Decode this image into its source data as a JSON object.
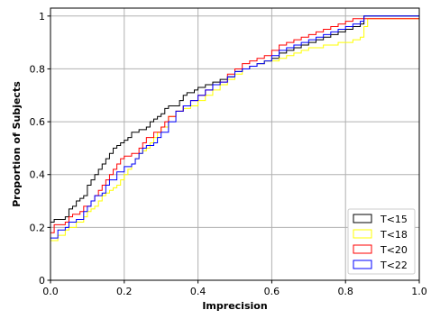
{
  "chart_data": {
    "type": "line",
    "title": "",
    "xlabel": "Imprecision",
    "ylabel": "Proportion of Subjects",
    "xlim": [
      0,
      1
    ],
    "ylim": [
      0,
      1.03
    ],
    "x_ticks": [
      "0.0",
      "0.2",
      "0.4",
      "0.6",
      "0.8",
      "1.0"
    ],
    "y_ticks": [
      "0",
      "0.2",
      "0.4",
      "0.6",
      "0.8",
      "1"
    ],
    "grid": true,
    "legend_position": "bottom-right",
    "series": [
      {
        "name": "T<15",
        "color": "#000000",
        "x": [
          0,
          0,
          0.01,
          0.04,
          0.05,
          0.06,
          0.07,
          0.08,
          0.09,
          0.1,
          0.11,
          0.12,
          0.13,
          0.14,
          0.15,
          0.16,
          0.17,
          0.18,
          0.19,
          0.2,
          0.21,
          0.22,
          0.24,
          0.26,
          0.27,
          0.28,
          0.29,
          0.3,
          0.31,
          0.32,
          0.35,
          0.36,
          0.37,
          0.39,
          0.4,
          0.42,
          0.44,
          0.46,
          0.48,
          0.5,
          0.52,
          0.54,
          0.56,
          0.58,
          0.6,
          0.62,
          0.64,
          0.66,
          0.68,
          0.7,
          0.72,
          0.74,
          0.76,
          0.78,
          0.8,
          0.82,
          0.84,
          0.85,
          0.87,
          1.0
        ],
        "y": [
          0,
          0.22,
          0.23,
          0.24,
          0.27,
          0.28,
          0.3,
          0.31,
          0.32,
          0.36,
          0.38,
          0.4,
          0.42,
          0.44,
          0.46,
          0.48,
          0.5,
          0.51,
          0.52,
          0.53,
          0.54,
          0.56,
          0.57,
          0.58,
          0.6,
          0.61,
          0.62,
          0.63,
          0.65,
          0.66,
          0.68,
          0.7,
          0.71,
          0.72,
          0.73,
          0.74,
          0.75,
          0.76,
          0.77,
          0.79,
          0.8,
          0.81,
          0.82,
          0.83,
          0.84,
          0.86,
          0.87,
          0.88,
          0.89,
          0.9,
          0.91,
          0.92,
          0.93,
          0.94,
          0.95,
          0.96,
          0.97,
          1.0,
          1.0,
          1.0
        ]
      },
      {
        "name": "T<18",
        "color": "#ffff00",
        "x": [
          0,
          0,
          0.02,
          0.04,
          0.05,
          0.07,
          0.09,
          0.1,
          0.11,
          0.12,
          0.13,
          0.14,
          0.15,
          0.16,
          0.17,
          0.18,
          0.19,
          0.2,
          0.21,
          0.22,
          0.23,
          0.24,
          0.25,
          0.26,
          0.27,
          0.28,
          0.29,
          0.3,
          0.32,
          0.34,
          0.36,
          0.38,
          0.4,
          0.42,
          0.44,
          0.46,
          0.48,
          0.5,
          0.52,
          0.54,
          0.56,
          0.58,
          0.6,
          0.62,
          0.64,
          0.66,
          0.68,
          0.7,
          0.74,
          0.78,
          0.82,
          0.84,
          0.85,
          0.86,
          1.0
        ],
        "y": [
          0,
          0.15,
          0.17,
          0.19,
          0.2,
          0.22,
          0.24,
          0.26,
          0.27,
          0.28,
          0.3,
          0.32,
          0.33,
          0.34,
          0.35,
          0.36,
          0.38,
          0.4,
          0.42,
          0.44,
          0.46,
          0.48,
          0.49,
          0.5,
          0.52,
          0.54,
          0.56,
          0.58,
          0.62,
          0.64,
          0.65,
          0.66,
          0.68,
          0.7,
          0.72,
          0.74,
          0.76,
          0.78,
          0.8,
          0.81,
          0.82,
          0.83,
          0.83,
          0.84,
          0.85,
          0.86,
          0.87,
          0.88,
          0.89,
          0.9,
          0.91,
          0.92,
          0.96,
          0.99,
          0.99
        ]
      },
      {
        "name": "T<20",
        "color": "#ff0000",
        "x": [
          0,
          0,
          0.01,
          0.04,
          0.05,
          0.06,
          0.08,
          0.09,
          0.11,
          0.12,
          0.13,
          0.14,
          0.15,
          0.16,
          0.17,
          0.18,
          0.19,
          0.2,
          0.22,
          0.24,
          0.25,
          0.26,
          0.28,
          0.3,
          0.31,
          0.32,
          0.34,
          0.36,
          0.38,
          0.4,
          0.42,
          0.44,
          0.46,
          0.48,
          0.5,
          0.52,
          0.54,
          0.56,
          0.58,
          0.6,
          0.62,
          0.64,
          0.66,
          0.68,
          0.7,
          0.72,
          0.74,
          0.76,
          0.78,
          0.8,
          0.82,
          0.84,
          0.85,
          1.0
        ],
        "y": [
          0,
          0.18,
          0.21,
          0.22,
          0.24,
          0.25,
          0.26,
          0.28,
          0.3,
          0.32,
          0.34,
          0.36,
          0.38,
          0.4,
          0.42,
          0.44,
          0.46,
          0.47,
          0.48,
          0.5,
          0.52,
          0.54,
          0.56,
          0.58,
          0.6,
          0.62,
          0.64,
          0.66,
          0.68,
          0.7,
          0.72,
          0.74,
          0.75,
          0.78,
          0.8,
          0.82,
          0.83,
          0.84,
          0.85,
          0.87,
          0.89,
          0.9,
          0.91,
          0.92,
          0.93,
          0.94,
          0.95,
          0.96,
          0.97,
          0.98,
          0.99,
          0.99,
          0.99,
          0.99
        ]
      },
      {
        "name": "T<22",
        "color": "#0000ff",
        "x": [
          0,
          0,
          0.02,
          0.04,
          0.05,
          0.07,
          0.09,
          0.1,
          0.11,
          0.12,
          0.14,
          0.15,
          0.16,
          0.18,
          0.2,
          0.22,
          0.23,
          0.24,
          0.25,
          0.26,
          0.28,
          0.29,
          0.3,
          0.32,
          0.34,
          0.36,
          0.38,
          0.4,
          0.42,
          0.44,
          0.46,
          0.48,
          0.5,
          0.52,
          0.54,
          0.56,
          0.58,
          0.6,
          0.62,
          0.64,
          0.66,
          0.68,
          0.7,
          0.72,
          0.74,
          0.76,
          0.78,
          0.8,
          0.82,
          0.84,
          0.85,
          0.87,
          1.0
        ],
        "y": [
          0,
          0.16,
          0.19,
          0.2,
          0.22,
          0.23,
          0.26,
          0.28,
          0.3,
          0.32,
          0.33,
          0.36,
          0.38,
          0.41,
          0.43,
          0.44,
          0.46,
          0.48,
          0.5,
          0.51,
          0.52,
          0.54,
          0.56,
          0.6,
          0.64,
          0.66,
          0.68,
          0.7,
          0.72,
          0.74,
          0.75,
          0.77,
          0.79,
          0.8,
          0.81,
          0.82,
          0.83,
          0.85,
          0.87,
          0.88,
          0.89,
          0.9,
          0.91,
          0.92,
          0.93,
          0.94,
          0.95,
          0.96,
          0.97,
          0.98,
          1.0,
          1.0,
          1.0
        ]
      }
    ]
  }
}
